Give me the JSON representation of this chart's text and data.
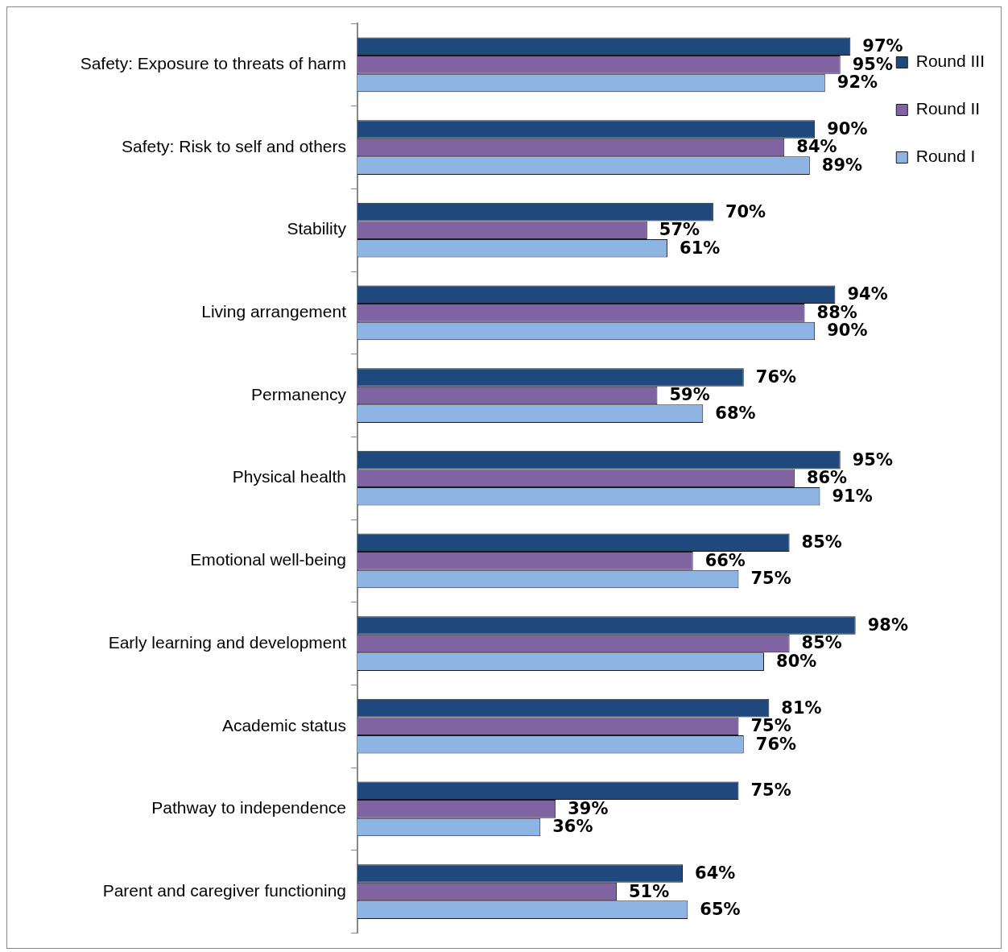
{
  "chart_data": {
    "type": "bar",
    "orientation": "horizontal",
    "categories": [
      "Safety: Exposure to threats of harm",
      "Safety: Risk to self and others",
      "Stability",
      "Living arrangement",
      "Permanency",
      "Physical health",
      "Emotional well-being",
      "Early learning and development",
      "Academic status",
      "Pathway to independence",
      "Parent and caregiver functioning"
    ],
    "series": [
      {
        "name": "Round III",
        "color": "#1f497d",
        "values": [
          97,
          90,
          70,
          94,
          76,
          95,
          85,
          98,
          81,
          75,
          64
        ],
        "value_labels": [
          "97%",
          "90%",
          "70%",
          "94%",
          "76%",
          "95%",
          "85%",
          "98%",
          "81%",
          "75%",
          "64%"
        ]
      },
      {
        "name": "Round II",
        "color": "#8064a2",
        "values": [
          95,
          84,
          57,
          88,
          59,
          86,
          66,
          85,
          75,
          39,
          51
        ],
        "value_labels": [
          "95%",
          "84%",
          "57%",
          "88%",
          "59%",
          "86%",
          "66%",
          "85%",
          "75%",
          "39%",
          "51%"
        ]
      },
      {
        "name": "Round I",
        "color": "#8eb4e3",
        "values": [
          92,
          89,
          61,
          90,
          68,
          91,
          75,
          80,
          76,
          36,
          65
        ],
        "value_labels": [
          "92%",
          "89%",
          "61%",
          "90%",
          "68%",
          "91%",
          "75%",
          "80%",
          "76%",
          "36%",
          "65%"
        ]
      }
    ],
    "legend": "top right",
    "grid": false,
    "tick_labels": "y"
  }
}
